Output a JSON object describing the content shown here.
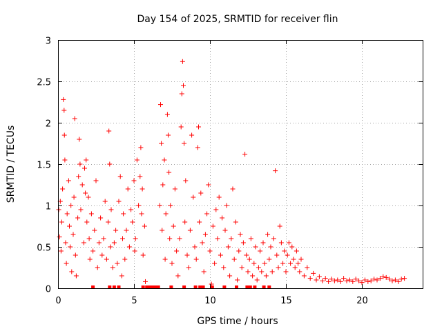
{
  "chart_data": {
    "type": "scatter",
    "title": "Day 154 of 2025, SRMTID for receiver flin",
    "xlabel": "GPS time / hours",
    "ylabel": "SRMTID / TECUs",
    "xlim": [
      0,
      24
    ],
    "ylim": [
      0,
      3
    ],
    "grid": true,
    "marker": "+",
    "color": "#ff0000",
    "x_ticks": [
      {
        "value": 0,
        "label": "0"
      },
      {
        "value": 5,
        "label": "5"
      },
      {
        "value": 10,
        "label": "10"
      },
      {
        "value": 15,
        "label": "15"
      },
      {
        "value": 20,
        "label": "20"
      }
    ],
    "y_ticks": [
      {
        "value": 0,
        "label": "0"
      },
      {
        "value": 0.5,
        "label": "0.5"
      },
      {
        "value": 1,
        "label": "1"
      },
      {
        "value": 1.5,
        "label": "1.5"
      },
      {
        "value": 2,
        "label": "2"
      },
      {
        "value": 2.5,
        "label": "2.5"
      },
      {
        "value": 3,
        "label": "3"
      }
    ],
    "series": [
      {
        "name": "SRMTID",
        "points": [
          [
            0.05,
            0.95
          ],
          [
            0.1,
            0.62
          ],
          [
            0.15,
            1.05
          ],
          [
            0.2,
            0.45
          ],
          [
            0.25,
            0.8
          ],
          [
            0.3,
            1.2
          ],
          [
            0.35,
            2.28
          ],
          [
            0.4,
            2.15
          ],
          [
            0.42,
            1.85
          ],
          [
            0.45,
            1.55
          ],
          [
            0.5,
            0.55
          ],
          [
            0.55,
            0.3
          ],
          [
            0.6,
            0.9
          ],
          [
            0.7,
            1.3
          ],
          [
            0.75,
            0.75
          ],
          [
            0.8,
            0.5
          ],
          [
            0.85,
            1.0
          ],
          [
            0.9,
            0.2
          ],
          [
            1.0,
            0.65
          ],
          [
            1.05,
            1.1
          ],
          [
            1.1,
            2.05
          ],
          [
            1.15,
            0.4
          ],
          [
            1.2,
            0.15
          ],
          [
            1.3,
            0.85
          ],
          [
            1.35,
            1.35
          ],
          [
            1.4,
            1.8
          ],
          [
            1.45,
            1.5
          ],
          [
            1.5,
            0.95
          ],
          [
            1.6,
            1.25
          ],
          [
            1.7,
            0.55
          ],
          [
            1.75,
            1.45
          ],
          [
            1.8,
            1.15
          ],
          [
            1.85,
            1.55
          ],
          [
            1.9,
            0.8
          ],
          [
            2.0,
            1.1
          ],
          [
            2.05,
            0.6
          ],
          [
            2.1,
            0.35
          ],
          [
            2.2,
            0.9
          ],
          [
            2.3,
            0.45
          ],
          [
            2.4,
            0.7
          ],
          [
            2.5,
            1.3
          ],
          [
            2.6,
            0.25
          ],
          [
            2.7,
            0.55
          ],
          [
            2.8,
            0.85
          ],
          [
            2.9,
            0.4
          ],
          [
            3.0,
            0.6
          ],
          [
            3.1,
            1.05
          ],
          [
            3.2,
            0.35
          ],
          [
            3.3,
            0.8
          ],
          [
            3.35,
            1.9
          ],
          [
            3.4,
            1.5
          ],
          [
            3.45,
            0.5
          ],
          [
            3.5,
            0.95
          ],
          [
            3.6,
            0.25
          ],
          [
            3.7,
            0.55
          ],
          [
            3.8,
            0.7
          ],
          [
            3.9,
            0.3
          ],
          [
            4.0,
            1.05
          ],
          [
            4.1,
            1.35
          ],
          [
            4.2,
            0.15
          ],
          [
            4.25,
            0.6
          ],
          [
            4.3,
            0.9
          ],
          [
            4.4,
            0.35
          ],
          [
            4.5,
            0.7
          ],
          [
            4.6,
            1.2
          ],
          [
            4.7,
            0.5
          ],
          [
            4.8,
            0.95
          ],
          [
            4.9,
            0.8
          ],
          [
            5.0,
            1.3
          ],
          [
            5.05,
            0.45
          ],
          [
            5.1,
            0.6
          ],
          [
            5.2,
            1.55
          ],
          [
            5.3,
            1.0
          ],
          [
            5.4,
            1.35
          ],
          [
            5.45,
            1.7
          ],
          [
            5.5,
            0.9
          ],
          [
            5.55,
            1.2
          ],
          [
            5.6,
            0.4
          ],
          [
            5.7,
            0.75
          ],
          [
            5.75,
            0.08
          ],
          [
            6.7,
            1.0
          ],
          [
            6.75,
            2.22
          ],
          [
            6.8,
            1.75
          ],
          [
            6.85,
            0.7
          ],
          [
            6.9,
            1.25
          ],
          [
            7.0,
            1.55
          ],
          [
            7.05,
            0.35
          ],
          [
            7.1,
            0.9
          ],
          [
            7.2,
            2.1
          ],
          [
            7.25,
            1.85
          ],
          [
            7.3,
            1.4
          ],
          [
            7.35,
            0.6
          ],
          [
            7.4,
            1.0
          ],
          [
            7.5,
            0.3
          ],
          [
            7.6,
            0.75
          ],
          [
            7.7,
            1.2
          ],
          [
            7.8,
            0.45
          ],
          [
            7.9,
            0.15
          ],
          [
            8.0,
            0.6
          ],
          [
            8.1,
            1.95
          ],
          [
            8.15,
            2.35
          ],
          [
            8.2,
            2.74
          ],
          [
            8.25,
            2.45
          ],
          [
            8.3,
            1.75
          ],
          [
            8.35,
            0.8
          ],
          [
            8.4,
            1.3
          ],
          [
            8.5,
            0.4
          ],
          [
            8.6,
            0.25
          ],
          [
            8.7,
            0.7
          ],
          [
            8.8,
            1.85
          ],
          [
            8.9,
            1.1
          ],
          [
            9.0,
            0.5
          ],
          [
            9.1,
            0.35
          ],
          [
            9.2,
            1.7
          ],
          [
            9.25,
            1.95
          ],
          [
            9.3,
            0.8
          ],
          [
            9.4,
            1.15
          ],
          [
            9.5,
            0.55
          ],
          [
            9.6,
            0.2
          ],
          [
            9.7,
            0.65
          ],
          [
            9.8,
            0.9
          ],
          [
            9.9,
            1.25
          ],
          [
            10.0,
            0.45
          ],
          [
            10.1,
            0.05
          ],
          [
            10.2,
            0.75
          ],
          [
            10.3,
            0.3
          ],
          [
            10.4,
            0.95
          ],
          [
            10.5,
            0.6
          ],
          [
            10.6,
            1.1
          ],
          [
            10.7,
            0.4
          ],
          [
            10.8,
            0.85
          ],
          [
            10.9,
            0.25
          ],
          [
            11.0,
            0.7
          ],
          [
            11.1,
            1.0
          ],
          [
            11.2,
            0.5
          ],
          [
            11.3,
            0.15
          ],
          [
            11.4,
            0.6
          ],
          [
            11.5,
            1.2
          ],
          [
            11.6,
            0.35
          ],
          [
            11.7,
            0.8
          ],
          [
            11.8,
            0.1
          ],
          [
            11.9,
            0.45
          ],
          [
            12.0,
            0.65
          ],
          [
            12.1,
            0.25
          ],
          [
            12.2,
            0.55
          ],
          [
            12.3,
            1.62
          ],
          [
            12.4,
            0.4
          ],
          [
            12.5,
            0.2
          ],
          [
            12.6,
            0.35
          ],
          [
            12.7,
            0.6
          ],
          [
            12.8,
            0.15
          ],
          [
            12.9,
            0.3
          ],
          [
            13.0,
            0.5
          ],
          [
            13.1,
            0.1
          ],
          [
            13.2,
            0.25
          ],
          [
            13.3,
            0.45
          ],
          [
            13.4,
            0.2
          ],
          [
            13.5,
            0.55
          ],
          [
            13.6,
            0.3
          ],
          [
            13.7,
            0.15
          ],
          [
            13.8,
            0.65
          ],
          [
            13.9,
            0.35
          ],
          [
            14.0,
            0.5
          ],
          [
            14.1,
            0.2
          ],
          [
            14.2,
            0.6
          ],
          [
            14.3,
            1.42
          ],
          [
            14.4,
            0.4
          ],
          [
            14.5,
            0.25
          ],
          [
            14.6,
            0.75
          ],
          [
            14.7,
            0.55
          ],
          [
            14.8,
            0.3
          ],
          [
            14.9,
            0.45
          ],
          [
            15.0,
            0.2
          ],
          [
            15.1,
            0.4
          ],
          [
            15.2,
            0.55
          ],
          [
            15.3,
            0.3
          ],
          [
            15.4,
            0.5
          ],
          [
            15.5,
            0.35
          ],
          [
            15.6,
            0.25
          ],
          [
            15.7,
            0.45
          ],
          [
            15.8,
            0.3
          ],
          [
            15.9,
            0.2
          ],
          [
            16.0,
            0.35
          ],
          [
            16.2,
            0.15
          ],
          [
            16.4,
            0.25
          ],
          [
            16.6,
            0.12
          ],
          [
            16.8,
            0.18
          ],
          [
            17.0,
            0.1
          ],
          [
            17.2,
            0.14
          ],
          [
            17.4,
            0.09
          ],
          [
            17.6,
            0.12
          ],
          [
            17.8,
            0.08
          ],
          [
            18.0,
            0.11
          ],
          [
            18.2,
            0.09
          ],
          [
            18.4,
            0.1
          ],
          [
            18.6,
            0.08
          ],
          [
            18.8,
            0.12
          ],
          [
            19.0,
            0.09
          ],
          [
            19.2,
            0.1
          ],
          [
            19.4,
            0.08
          ],
          [
            19.6,
            0.11
          ],
          [
            19.8,
            0.09
          ],
          [
            20.0,
            0.07
          ],
          [
            20.2,
            0.1
          ],
          [
            20.4,
            0.08
          ],
          [
            20.6,
            0.09
          ],
          [
            20.8,
            0.11
          ],
          [
            21.0,
            0.1
          ],
          [
            21.2,
            0.12
          ],
          [
            21.4,
            0.14
          ],
          [
            21.6,
            0.13
          ],
          [
            21.8,
            0.11
          ],
          [
            22.0,
            0.09
          ],
          [
            22.2,
            0.1
          ],
          [
            22.4,
            0.08
          ],
          [
            22.6,
            0.11
          ],
          [
            22.8,
            0.12
          ]
        ]
      }
    ],
    "zero_markers": [
      2.3,
      3.4,
      3.7,
      4.0,
      5.6,
      5.85,
      6.0,
      6.15,
      6.3,
      6.45,
      6.6,
      7.45,
      8.3,
      9.05,
      9.35,
      9.55,
      10.15,
      10.95,
      11.75,
      12.45,
      12.65,
      12.95,
      13.55,
      13.9
    ]
  }
}
